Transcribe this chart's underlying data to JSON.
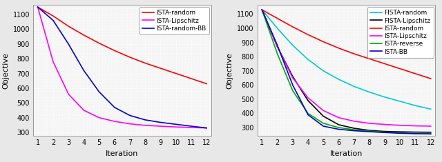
{
  "iterations": [
    1,
    2,
    3,
    4,
    5,
    6,
    7,
    8,
    9,
    10,
    11,
    12
  ],
  "plot1": {
    "series": [
      {
        "label": "ISTA-random",
        "color": "#ff0000",
        "values": [
          1150,
          1090,
          1020,
          960,
          905,
          855,
          810,
          770,
          735,
          700,
          665,
          630
        ]
      },
      {
        "label": "ISTA-Lipschitz",
        "color": "#ff00ff",
        "values": [
          1150,
          780,
          560,
          450,
          400,
          375,
          358,
          348,
          342,
          337,
          333,
          330
        ]
      },
      {
        "label": "ISTA-random-BB",
        "color": "#0000cd",
        "values": [
          1150,
          1060,
          900,
          720,
          575,
          470,
          415,
          385,
          368,
          355,
          342,
          330
        ]
      }
    ],
    "ylim": [
      275,
      1165
    ],
    "yticks": [
      300,
      400,
      500,
      600,
      700,
      800,
      900,
      1000,
      1100
    ],
    "xlabel": "Iteration",
    "ylabel": "Objective"
  },
  "plot2": {
    "series": [
      {
        "label": "FISTA-random",
        "color": "#00cccc",
        "values": [
          1130,
          1000,
          880,
          780,
          700,
          640,
          590,
          550,
          515,
          485,
          455,
          430
        ]
      },
      {
        "label": "FISTA-Lipschitz",
        "color": "#000000",
        "values": [
          1130,
          870,
          660,
          490,
          380,
          320,
          295,
          280,
          273,
          270,
          268,
          267
        ]
      },
      {
        "label": "ISTA-random",
        "color": "#ff0000",
        "values": [
          1130,
          1070,
          1010,
          955,
          905,
          860,
          820,
          785,
          750,
          715,
          680,
          645
        ]
      },
      {
        "label": "ISTA-Lipschitz",
        "color": "#ff00ff",
        "values": [
          1130,
          870,
          650,
          510,
          420,
          370,
          345,
          330,
          322,
          316,
          312,
          310
        ]
      },
      {
        "label": "ISTA-reverse",
        "color": "#00aa00",
        "values": [
          1130,
          820,
          560,
          400,
          330,
          300,
          285,
          275,
          268,
          263,
          259,
          257
        ]
      },
      {
        "label": "ISTA-BB",
        "color": "#0000cd",
        "values": [
          1130,
          880,
          600,
          390,
          310,
          288,
          278,
          271,
          265,
          260,
          257,
          255
        ]
      }
    ],
    "ylim": [
      240,
      1165
    ],
    "yticks": [
      300,
      400,
      500,
      600,
      700,
      800,
      900,
      1000,
      1100
    ],
    "xlabel": "Iteration",
    "ylabel": "Objective"
  },
  "bg_color": "#e8e8e8",
  "axes_bg": "#f5f5f5",
  "grid_color": "#ffffff",
  "grid_style": ":",
  "fontsize": 7,
  "legend_fontsize": 6.5,
  "linewidth": 1.2
}
